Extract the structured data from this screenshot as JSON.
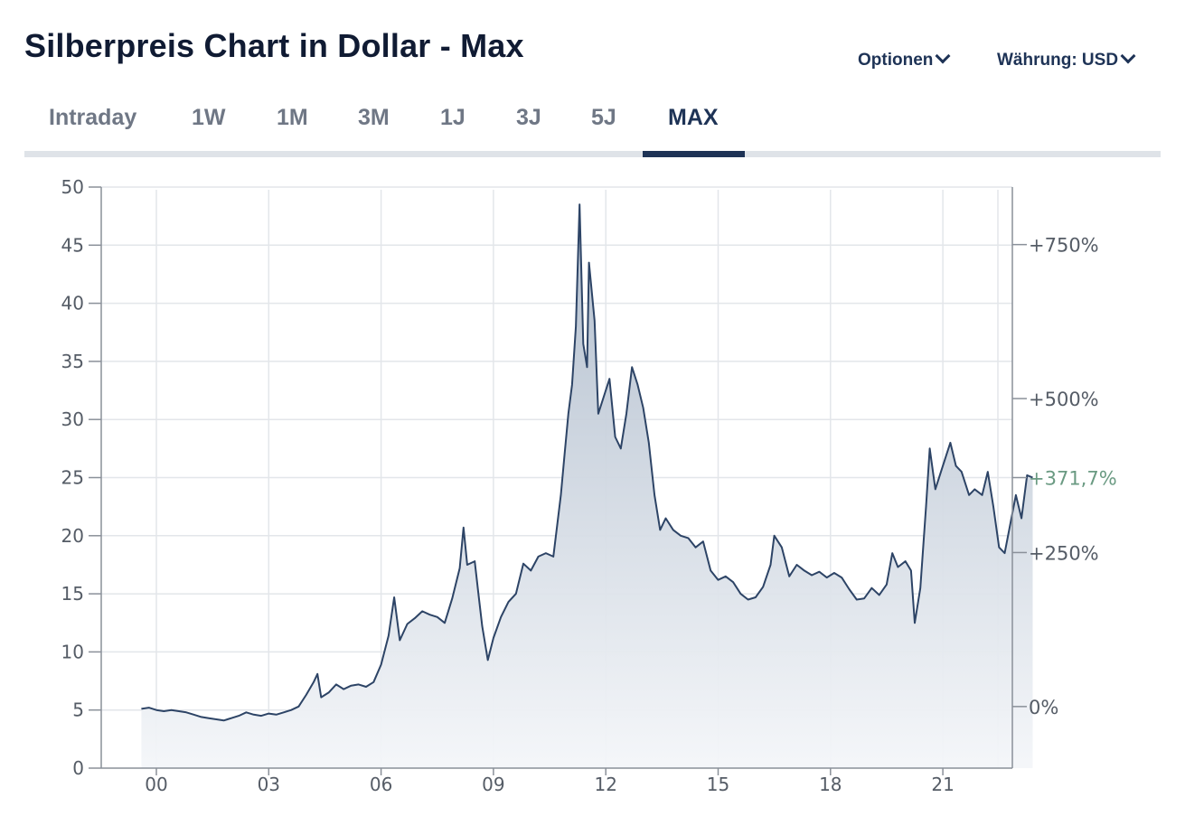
{
  "header": {
    "title": "Silberpreis Chart in Dollar - Max",
    "options_label": "Optionen",
    "currency_label": "Währung: USD"
  },
  "tabs": [
    {
      "label": "Intraday",
      "active": false
    },
    {
      "label": "1W",
      "active": false
    },
    {
      "label": "1M",
      "active": false
    },
    {
      "label": "3M",
      "active": false
    },
    {
      "label": "1J",
      "active": false
    },
    {
      "label": "3J",
      "active": false
    },
    {
      "label": "5J",
      "active": false
    },
    {
      "label": "MAX",
      "active": true
    }
  ],
  "colors": {
    "line": "#2d4466",
    "fill_top": "#aebbcb",
    "fill_bottom": "#f4f6f9",
    "grid": "#e3e6ea",
    "axis_text": "#555c66",
    "current_pct": "#6a9a82",
    "active_tab": "#1e3356"
  },
  "chart_data": {
    "type": "area",
    "x_unit": "year",
    "x_ticks": [
      {
        "x": 2000,
        "label": "00"
      },
      {
        "x": 2003,
        "label": "03"
      },
      {
        "x": 2006,
        "label": "06"
      },
      {
        "x": 2009,
        "label": "09"
      },
      {
        "x": 2012,
        "label": "12"
      },
      {
        "x": 2015,
        "label": "15"
      },
      {
        "x": 2018,
        "label": "18"
      },
      {
        "x": 2021,
        "label": "21"
      }
    ],
    "xlim": [
      1999.4,
      2023.7
    ],
    "y_ticks": [
      0,
      5,
      10,
      15,
      20,
      25,
      30,
      35,
      40,
      45,
      50
    ],
    "ylim": [
      0,
      50
    ],
    "right_axis": {
      "base_value": 5.3,
      "ticks": [
        {
          "value": 5.3,
          "label": "0%"
        },
        {
          "value": 18.55,
          "label": "+250%"
        },
        {
          "value": 31.8,
          "label": "+500%"
        },
        {
          "value": 45.05,
          "label": "+750%"
        }
      ],
      "current": {
        "value": 25.0,
        "label": "+371,7%"
      }
    },
    "grid": true,
    "series": [
      {
        "points": [
          [
            1999.6,
            5.1
          ],
          [
            1999.8,
            5.2
          ],
          [
            2000.0,
            5.0
          ],
          [
            2000.2,
            4.9
          ],
          [
            2000.4,
            5.0
          ],
          [
            2000.6,
            4.9
          ],
          [
            2000.8,
            4.8
          ],
          [
            2001.0,
            4.6
          ],
          [
            2001.2,
            4.4
          ],
          [
            2001.4,
            4.3
          ],
          [
            2001.6,
            4.2
          ],
          [
            2001.8,
            4.1
          ],
          [
            2001.9,
            4.2
          ],
          [
            2002.0,
            4.3
          ],
          [
            2002.2,
            4.5
          ],
          [
            2002.4,
            4.8
          ],
          [
            2002.6,
            4.6
          ],
          [
            2002.8,
            4.5
          ],
          [
            2003.0,
            4.7
          ],
          [
            2003.2,
            4.6
          ],
          [
            2003.4,
            4.8
          ],
          [
            2003.6,
            5.0
          ],
          [
            2003.8,
            5.3
          ],
          [
            2004.0,
            6.3
          ],
          [
            2004.2,
            7.4
          ],
          [
            2004.3,
            8.1
          ],
          [
            2004.4,
            6.1
          ],
          [
            2004.6,
            6.5
          ],
          [
            2004.8,
            7.2
          ],
          [
            2005.0,
            6.8
          ],
          [
            2005.2,
            7.1
          ],
          [
            2005.4,
            7.2
          ],
          [
            2005.6,
            7.0
          ],
          [
            2005.8,
            7.4
          ],
          [
            2006.0,
            8.9
          ],
          [
            2006.2,
            11.4
          ],
          [
            2006.35,
            14.7
          ],
          [
            2006.5,
            11.0
          ],
          [
            2006.7,
            12.4
          ],
          [
            2006.9,
            12.9
          ],
          [
            2007.1,
            13.5
          ],
          [
            2007.3,
            13.2
          ],
          [
            2007.5,
            13.0
          ],
          [
            2007.7,
            12.5
          ],
          [
            2007.9,
            14.6
          ],
          [
            2008.1,
            17.2
          ],
          [
            2008.2,
            20.7
          ],
          [
            2008.3,
            17.5
          ],
          [
            2008.5,
            17.8
          ],
          [
            2008.6,
            15.0
          ],
          [
            2008.7,
            12.2
          ],
          [
            2008.85,
            9.3
          ],
          [
            2009.0,
            11.2
          ],
          [
            2009.2,
            13.0
          ],
          [
            2009.4,
            14.3
          ],
          [
            2009.6,
            15.0
          ],
          [
            2009.8,
            17.6
          ],
          [
            2010.0,
            17.0
          ],
          [
            2010.2,
            18.2
          ],
          [
            2010.4,
            18.5
          ],
          [
            2010.6,
            18.2
          ],
          [
            2010.8,
            23.5
          ],
          [
            2010.9,
            27.0
          ],
          [
            2011.0,
            30.5
          ],
          [
            2011.1,
            33.0
          ],
          [
            2011.2,
            38.0
          ],
          [
            2011.3,
            48.5
          ],
          [
            2011.4,
            36.5
          ],
          [
            2011.5,
            34.5
          ],
          [
            2011.55,
            43.5
          ],
          [
            2011.7,
            38.5
          ],
          [
            2011.8,
            30.5
          ],
          [
            2011.95,
            32.0
          ],
          [
            2012.1,
            33.5
          ],
          [
            2012.25,
            28.5
          ],
          [
            2012.4,
            27.5
          ],
          [
            2012.55,
            30.5
          ],
          [
            2012.7,
            34.5
          ],
          [
            2012.85,
            33.0
          ],
          [
            2013.0,
            31.0
          ],
          [
            2013.15,
            28.0
          ],
          [
            2013.3,
            23.5
          ],
          [
            2013.45,
            20.5
          ],
          [
            2013.6,
            21.5
          ],
          [
            2013.8,
            20.5
          ],
          [
            2014.0,
            20.0
          ],
          [
            2014.2,
            19.8
          ],
          [
            2014.4,
            19.0
          ],
          [
            2014.6,
            19.5
          ],
          [
            2014.8,
            17.0
          ],
          [
            2015.0,
            16.2
          ],
          [
            2015.2,
            16.5
          ],
          [
            2015.4,
            16.0
          ],
          [
            2015.6,
            15.0
          ],
          [
            2015.8,
            14.5
          ],
          [
            2016.0,
            14.7
          ],
          [
            2016.2,
            15.6
          ],
          [
            2016.4,
            17.5
          ],
          [
            2016.5,
            20.0
          ],
          [
            2016.7,
            19.0
          ],
          [
            2016.9,
            16.5
          ],
          [
            2017.1,
            17.5
          ],
          [
            2017.3,
            17.0
          ],
          [
            2017.5,
            16.6
          ],
          [
            2017.7,
            16.9
          ],
          [
            2017.9,
            16.4
          ],
          [
            2018.1,
            16.8
          ],
          [
            2018.3,
            16.4
          ],
          [
            2018.5,
            15.4
          ],
          [
            2018.7,
            14.5
          ],
          [
            2018.9,
            14.6
          ],
          [
            2019.1,
            15.5
          ],
          [
            2019.3,
            14.9
          ],
          [
            2019.5,
            15.8
          ],
          [
            2019.65,
            18.5
          ],
          [
            2019.8,
            17.3
          ],
          [
            2020.0,
            17.8
          ],
          [
            2020.15,
            17.0
          ],
          [
            2020.25,
            12.5
          ],
          [
            2020.4,
            15.5
          ],
          [
            2020.55,
            22.5
          ],
          [
            2020.65,
            27.5
          ],
          [
            2020.8,
            24.0
          ],
          [
            2020.95,
            25.5
          ],
          [
            2021.1,
            27.0
          ],
          [
            2021.2,
            28.0
          ],
          [
            2021.35,
            26.0
          ],
          [
            2021.5,
            25.5
          ],
          [
            2021.7,
            23.5
          ],
          [
            2021.85,
            24.0
          ],
          [
            2022.05,
            23.5
          ],
          [
            2022.2,
            25.5
          ],
          [
            2022.35,
            22.5
          ],
          [
            2022.5,
            19.0
          ],
          [
            2022.65,
            18.5
          ],
          [
            2022.8,
            21.0
          ],
          [
            2022.95,
            23.5
          ],
          [
            2023.1,
            21.5
          ],
          [
            2023.25,
            25.2
          ],
          [
            2023.4,
            25.0
          ]
        ]
      }
    ]
  }
}
